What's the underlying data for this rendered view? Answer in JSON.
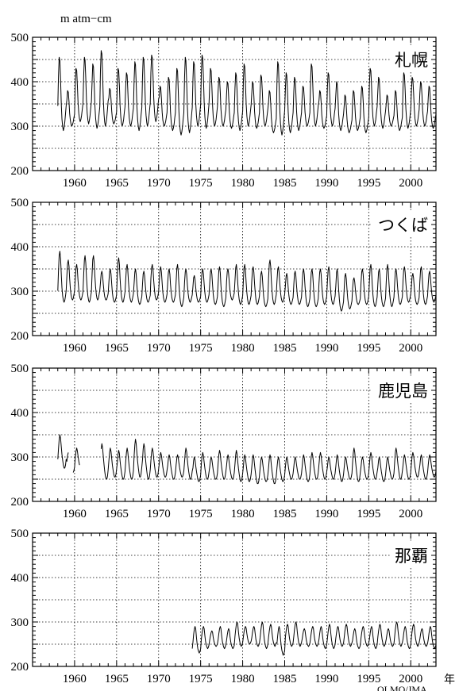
{
  "unit_label": "m  atm−cm",
  "x_unit_label": "年",
  "credit": "OLMO/JMA",
  "chart_data": [
    {
      "type": "line",
      "station": "札幌",
      "xlim": [
        1955,
        2003
      ],
      "ylim": [
        200,
        500
      ],
      "yticks": [
        200,
        300,
        400,
        500
      ],
      "xticks": [
        1960,
        1965,
        1970,
        1975,
        1980,
        1985,
        1990,
        1995,
        2000
      ],
      "grid": true,
      "series": [
        {
          "start": 1958.0,
          "end": 2003.0,
          "gaps": [],
          "monthly_profile": [
            330,
            375,
            405,
            400,
            370,
            332,
            310,
            298,
            292,
            297,
            305,
            318
          ],
          "peaks": [
            455,
            380,
            430,
            455,
            440,
            470,
            385,
            430,
            420,
            445,
            455,
            460,
            390,
            410,
            430,
            455,
            445,
            460,
            430,
            410,
            400,
            420,
            440,
            400,
            415,
            380,
            445,
            420,
            410,
            390,
            440,
            380,
            420,
            400,
            370,
            380,
            390,
            430,
            410,
            370,
            380,
            420,
            410,
            400,
            390
          ],
          "troughs": [
            290,
            300,
            310,
            305,
            295,
            300,
            305,
            300,
            300,
            290,
            300,
            310,
            300,
            290,
            280,
            285,
            300,
            295,
            300,
            300,
            295,
            290,
            300,
            295,
            300,
            285,
            280,
            285,
            290,
            300,
            300,
            295,
            300,
            290,
            285,
            290,
            285,
            300,
            295,
            300,
            290,
            295,
            300,
            300,
            295
          ]
        }
      ]
    },
    {
      "type": "line",
      "station": "つくば",
      "xlim": [
        1955,
        2003
      ],
      "ylim": [
        200,
        500
      ],
      "yticks": [
        200,
        300,
        400,
        500
      ],
      "xticks": [
        1960,
        1965,
        1970,
        1975,
        1980,
        1985,
        1990,
        1995,
        2000
      ],
      "grid": true,
      "series": [
        {
          "start": 1958.0,
          "end": 2003.0,
          "gaps": [],
          "monthly_profile": [
            300,
            330,
            355,
            362,
            350,
            325,
            305,
            292,
            285,
            282,
            285,
            292
          ],
          "peaks": [
            390,
            370,
            360,
            380,
            380,
            345,
            350,
            375,
            360,
            350,
            345,
            360,
            355,
            350,
            360,
            350,
            335,
            350,
            350,
            355,
            350,
            360,
            360,
            355,
            345,
            370,
            355,
            340,
            345,
            350,
            350,
            350,
            355,
            350,
            340,
            330,
            350,
            360,
            350,
            360,
            350,
            355,
            340,
            355,
            345
          ],
          "troughs": [
            275,
            280,
            280,
            275,
            280,
            280,
            275,
            275,
            275,
            270,
            275,
            280,
            275,
            275,
            265,
            275,
            275,
            275,
            270,
            265,
            280,
            270,
            270,
            270,
            265,
            270,
            275,
            270,
            270,
            265,
            265,
            270,
            270,
            255,
            260,
            270,
            270,
            265,
            265,
            265,
            270,
            275,
            270,
            270,
            275
          ]
        }
      ]
    },
    {
      "type": "line",
      "station": "鹿児島",
      "xlim": [
        1955,
        2003
      ],
      "ylim": [
        200,
        500
      ],
      "yticks": [
        200,
        300,
        400,
        500
      ],
      "xticks": [
        1960,
        1965,
        1970,
        1975,
        1980,
        1985,
        1990,
        1995,
        2000
      ],
      "grid": true,
      "series": [
        {
          "start": 1958.0,
          "end": 2003.0,
          "gaps": [
            [
              1959.3,
              1959.8
            ],
            [
              1960.6,
              1963.1
            ]
          ],
          "monthly_profile": [
            270,
            290,
            310,
            320,
            312,
            295,
            280,
            268,
            258,
            252,
            252,
            258
          ],
          "peaks": [
            350,
            310,
            320,
            330,
            330,
            330,
            320,
            315,
            320,
            340,
            330,
            320,
            310,
            305,
            305,
            320,
            300,
            310,
            300,
            315,
            305,
            315,
            305,
            305,
            300,
            305,
            300,
            300,
            300,
            305,
            310,
            310,
            300,
            305,
            300,
            320,
            300,
            310,
            300,
            300,
            320,
            305,
            310,
            305,
            305
          ],
          "troughs": [
            275,
            265,
            270,
            265,
            260,
            250,
            255,
            250,
            250,
            255,
            250,
            255,
            255,
            250,
            255,
            250,
            245,
            250,
            250,
            250,
            250,
            245,
            245,
            240,
            245,
            240,
            245,
            250,
            250,
            245,
            250,
            250,
            250,
            245,
            250,
            245,
            250,
            250,
            245,
            250,
            250,
            250,
            255,
            250,
            255
          ]
        }
      ]
    },
    {
      "type": "line",
      "station": "那覇",
      "xlim": [
        1955,
        2003
      ],
      "ylim": [
        200,
        500
      ],
      "yticks": [
        200,
        300,
        400,
        500
      ],
      "xticks": [
        1960,
        1965,
        1970,
        1975,
        1980,
        1985,
        1990,
        1995,
        2000
      ],
      "grid": true,
      "series": [
        {
          "start": 1974.0,
          "end": 2003.0,
          "gaps": [],
          "monthly_profile": [
            250,
            262,
            275,
            285,
            290,
            285,
            270,
            258,
            250,
            245,
            242,
            245
          ],
          "peaks": [
            290,
            290,
            280,
            290,
            285,
            300,
            290,
            290,
            300,
            295,
            290,
            295,
            300,
            285,
            290,
            290,
            295,
            290,
            295,
            285,
            290,
            290,
            295,
            285,
            300,
            290,
            295,
            285,
            290
          ],
          "troughs": [
            230,
            240,
            245,
            240,
            240,
            245,
            250,
            245,
            240,
            245,
            225,
            245,
            245,
            245,
            245,
            240,
            240,
            245,
            245,
            240,
            245,
            240,
            245,
            245,
            245,
            240,
            245,
            245,
            240
          ]
        }
      ]
    }
  ]
}
